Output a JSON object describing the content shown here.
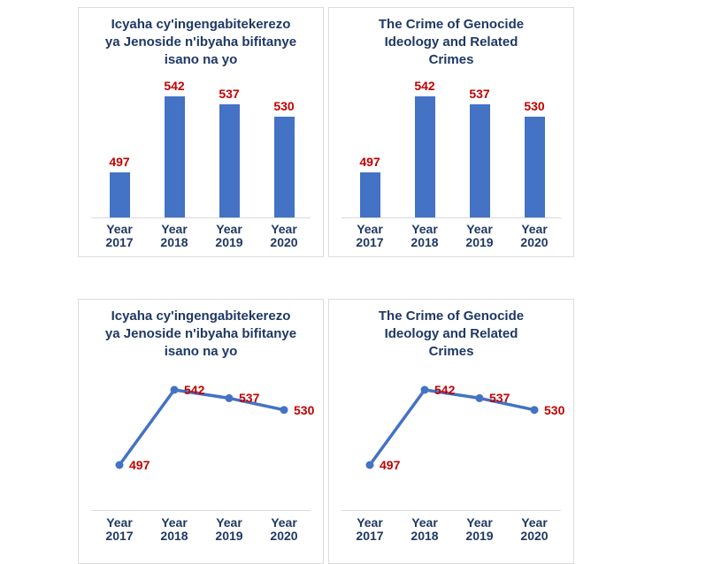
{
  "colors": {
    "background": "#FFFFFF",
    "bar": "#4472C4",
    "line": "#4472C4",
    "marker": "#4472C4",
    "data_label": "#C00000",
    "title_text": "#1F3864",
    "axis_label_text": "#1F3864",
    "axis_line": "#D9D9D9",
    "panel_border": "#DCDCDC"
  },
  "chart_data": [
    {
      "type": "bar",
      "title": "Icyaha cy'ingengabitekerezo ya Jenoside n'ibyaha bifitanye isano na yo",
      "title_lines": [
        "Icyaha cy'ingengabitekerezo",
        "ya Jenoside n'ibyaha bifitanye",
        "isano na yo"
      ],
      "categories": [
        "Year 2017",
        "Year 2018",
        "Year 2019",
        "Year 2020"
      ],
      "values": [
        497,
        542,
        537,
        530
      ],
      "data_labels": [
        "497",
        "542",
        "537",
        "530"
      ],
      "ylim": [
        470,
        545
      ],
      "grid": false,
      "legend": false,
      "data_label_position": "above-bar"
    },
    {
      "type": "bar",
      "title": "The Crime of Genocide Ideology and Related Crimes",
      "title_lines": [
        "The Crime of Genocide",
        "Ideology and Related",
        "Crimes"
      ],
      "categories": [
        "Year 2017",
        "Year 2018",
        "Year 2019",
        "Year 2020"
      ],
      "values": [
        497,
        542,
        537,
        530
      ],
      "data_labels": [
        "497",
        "542",
        "537",
        "530"
      ],
      "ylim": [
        470,
        545
      ],
      "grid": false,
      "legend": false,
      "data_label_position": "above-bar"
    },
    {
      "type": "line",
      "title": "Icyaha cy'ingengabitekerezo ya Jenoside n'ibyaha bifitanye isano na yo",
      "title_lines": [
        "Icyaha cy'ingengabitekerezo",
        "ya Jenoside n'ibyaha bifitanye",
        "isano na yo"
      ],
      "categories": [
        "Year 2017",
        "Year 2018",
        "Year 2019",
        "Year 2020"
      ],
      "values": [
        497,
        542,
        537,
        530
      ],
      "data_labels": [
        "497",
        "542",
        "537",
        "530"
      ],
      "ylim": [
        470,
        560
      ],
      "grid": false,
      "legend": false,
      "data_label_position": "right-of-marker"
    },
    {
      "type": "line",
      "title": "The Crime of Genocide Ideology and Related Crimes",
      "title_lines": [
        "The Crime of Genocide",
        "Ideology and Related",
        "Crimes"
      ],
      "categories": [
        "Year 2017",
        "Year 2018",
        "Year 2019",
        "Year 2020"
      ],
      "values": [
        497,
        542,
        537,
        530
      ],
      "data_labels": [
        "497",
        "542",
        "537",
        "530"
      ],
      "ylim": [
        470,
        560
      ],
      "grid": false,
      "legend": false,
      "data_label_position": "right-of-marker"
    }
  ]
}
